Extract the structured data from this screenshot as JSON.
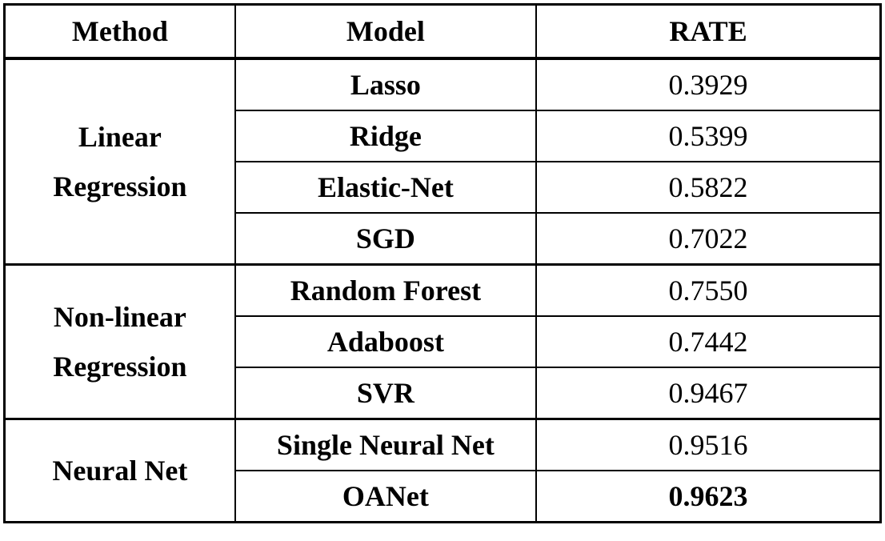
{
  "headers": {
    "method": "Method",
    "model": "Model",
    "rate": "RATE"
  },
  "groups": [
    {
      "method_line1": "Linear",
      "method_line2": "Regression",
      "rows": [
        {
          "model": "Lasso",
          "rate": "0.3929"
        },
        {
          "model": "Ridge",
          "rate": "0.5399"
        },
        {
          "model": "Elastic-Net",
          "rate": "0.5822"
        },
        {
          "model": "SGD",
          "rate": "0.7022"
        }
      ]
    },
    {
      "method_line1": "Non-linear",
      "method_line2": "Regression",
      "rows": [
        {
          "model": "Random Forest",
          "rate": "0.7550"
        },
        {
          "model": "Adaboost",
          "rate": "0.7442"
        },
        {
          "model": "SVR",
          "rate": "0.9467"
        }
      ]
    },
    {
      "method_line1": "Neural Net",
      "rows": [
        {
          "model": "Single Neural Net",
          "rate": "0.9516"
        },
        {
          "model": "OANet",
          "rate": "0.9623",
          "best": true
        }
      ]
    }
  ]
}
